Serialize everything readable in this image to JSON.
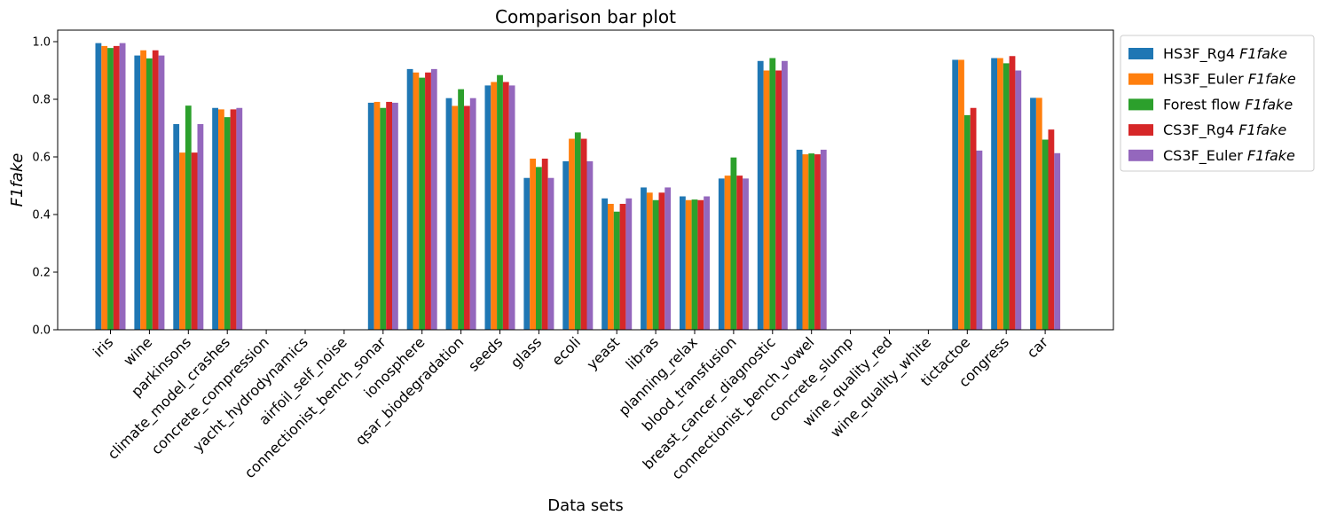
{
  "chart_data": {
    "type": "bar",
    "title": "Comparison bar plot",
    "xlabel": "Data sets",
    "ylabel": "F1fake",
    "ylim": [
      0,
      1.04
    ],
    "yticks": [
      "0.0",
      "0.2",
      "0.4",
      "0.6",
      "0.8",
      "1.0"
    ],
    "ytick_values": [
      0,
      0.2,
      0.4,
      0.6,
      0.8,
      1.0
    ],
    "legend_position": "outside-top-right",
    "categories": [
      "iris",
      "wine",
      "parkinsons",
      "climate_model_crashes",
      "concrete_compression",
      "yacht_hydrodynamics",
      "airfoil_self_noise",
      "connectionist_bench_sonar",
      "ionosphere",
      "qsar_biodegradation",
      "seeds",
      "glass",
      "ecoli",
      "yeast",
      "libras",
      "planning_relax",
      "blood_transfusion",
      "breast_cancer_diagnostic",
      "connectionist_bench_vowel",
      "concrete_slump",
      "wine_quality_red",
      "wine_quality_white",
      "tictactoe",
      "congress",
      "car"
    ],
    "series": [
      {
        "name": "HS3F_Rg4",
        "suffix": "F1fake",
        "color": "#1f77b4",
        "values": [
          0.995,
          0.952,
          0.714,
          0.77,
          null,
          null,
          null,
          0.788,
          0.905,
          0.804,
          0.848,
          0.527,
          0.585,
          0.456,
          0.494,
          0.463,
          0.525,
          0.933,
          0.625,
          null,
          null,
          null,
          0.937,
          0.943,
          0.805
        ]
      },
      {
        "name": "HS3F_Euler",
        "suffix": "F1fake",
        "color": "#ff7f0e",
        "values": [
          0.985,
          0.97,
          0.615,
          0.765,
          null,
          null,
          null,
          0.791,
          0.893,
          0.777,
          0.86,
          0.594,
          0.663,
          0.437,
          0.476,
          0.45,
          0.535,
          0.9,
          0.609,
          null,
          null,
          null,
          0.937,
          0.943,
          0.805
        ]
      },
      {
        "name": "Forest flow",
        "suffix": "F1fake",
        "color": "#2ca02c",
        "values": [
          0.978,
          0.942,
          0.778,
          0.738,
          null,
          null,
          null,
          0.77,
          0.875,
          0.835,
          0.884,
          0.565,
          0.685,
          0.41,
          0.45,
          0.452,
          0.598,
          0.943,
          0.612,
          null,
          null,
          null,
          0.745,
          0.925,
          0.66
        ]
      },
      {
        "name": "CS3F_Rg4",
        "suffix": "F1fake",
        "color": "#d62728",
        "values": [
          0.985,
          0.97,
          0.615,
          0.765,
          null,
          null,
          null,
          0.791,
          0.893,
          0.777,
          0.86,
          0.594,
          0.663,
          0.437,
          0.476,
          0.45,
          0.535,
          0.9,
          0.609,
          null,
          null,
          null,
          0.77,
          0.95,
          0.695
        ]
      },
      {
        "name": "CS3F_Euler",
        "suffix": "F1fake",
        "color": "#9467bd",
        "values": [
          0.995,
          0.952,
          0.714,
          0.77,
          null,
          null,
          null,
          0.788,
          0.905,
          0.804,
          0.848,
          0.527,
          0.585,
          0.456,
          0.494,
          0.463,
          0.525,
          0.933,
          0.625,
          null,
          null,
          null,
          0.622,
          0.9,
          0.613
        ]
      }
    ]
  }
}
